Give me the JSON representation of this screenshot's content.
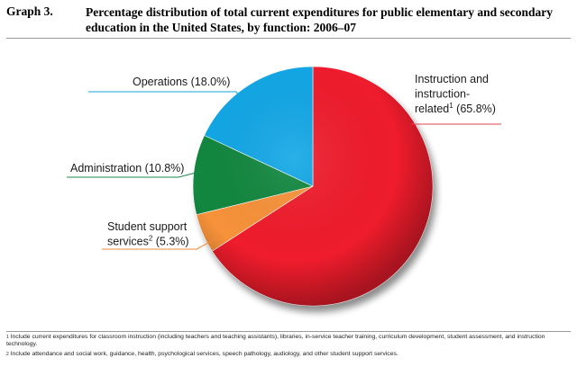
{
  "header": {
    "graph_number": "Graph 3.",
    "title": "Percentage distribution of total current expenditures for public elementary and secondary education in the United States, by function:  2006–07"
  },
  "chart_data": {
    "type": "pie",
    "title": "Percentage distribution of total current expenditures for public elementary and secondary education in the United States, by function:  2006–07",
    "slices": [
      {
        "name": "Instruction and instruction-related",
        "value": 65.8,
        "color": "#ef1c2c",
        "label_lines": [
          "Instruction and",
          "instruction-",
          "related"
        ],
        "footnote": "1",
        "value_text": "(65.8%)",
        "leader_color": "#e0464f"
      },
      {
        "name": "Student support services",
        "value": 5.3,
        "color": "#f7923a",
        "label_lines": [
          "Student support",
          "services"
        ],
        "footnote": "2",
        "value_text": "(5.3%)",
        "leader_color": "#f28a3c"
      },
      {
        "name": "Administration",
        "value": 10.8,
        "color": "#12873f",
        "label_lines": [
          "Administration"
        ],
        "footnote": "",
        "value_text": "(10.8%)",
        "leader_color": "#1b8a48"
      },
      {
        "name": "Operations",
        "value": 18.0,
        "color": "#12a7e6",
        "label_lines": [
          "Operations"
        ],
        "footnote": "",
        "value_text": "(18.0%)",
        "leader_color": "#1aa3dd"
      }
    ]
  },
  "footnotes": [
    {
      "mark": "1",
      "text": "Include current expenditures for classroom instruction (including teachers and teaching assistants), libraries, in-service teacher training, curriculum development, student assessment, and instruction technology."
    },
    {
      "mark": "2",
      "text": "Include attendance and social work, guidance, health, psychological services, speech pathology, audiology, and other student support services."
    }
  ]
}
